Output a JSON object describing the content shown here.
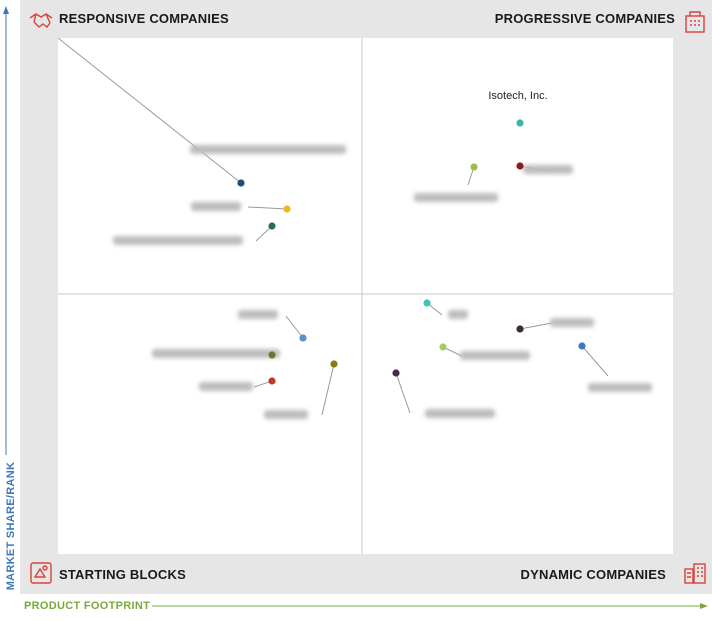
{
  "quadrants": {
    "top_left": "RESPONSIVE COMPANIES",
    "top_right": "PROGRESSIVE COMPANIES",
    "bottom_left": "STARTING BLOCKS",
    "bottom_right": "DYNAMIC COMPANIES"
  },
  "axes": {
    "y_label": "MARKET SHARE/RANK",
    "x_label": "PRODUCT FOOTPRINT"
  },
  "companies": [
    {
      "name": "Isotech, Inc.",
      "color": "#3bb4a4",
      "blurred": false
    },
    {
      "name": "",
      "color": "#8a1c1c",
      "blurred": true
    },
    {
      "name": "",
      "color": "#9dbf4a",
      "blurred": true
    },
    {
      "name": "",
      "color": "#1f4e79",
      "blurred": true
    },
    {
      "name": "",
      "color": "#f2b51d",
      "blurred": true
    },
    {
      "name": "",
      "color": "#2a6b5a",
      "blurred": true
    },
    {
      "name": "",
      "color": "#5b8fd0",
      "blurred": true
    },
    {
      "name": "",
      "color": "#6a7a2a",
      "blurred": true
    },
    {
      "name": "",
      "color": "#c0392b",
      "blurred": true
    },
    {
      "name": "",
      "color": "#8b7a10",
      "blurred": true
    },
    {
      "name": "",
      "color": "#45c1b5",
      "blurred": true
    },
    {
      "name": "",
      "color": "#3a2a3a",
      "blurred": true
    },
    {
      "name": "",
      "color": "#a8c96a",
      "blurred": true
    },
    {
      "name": "",
      "color": "#3a7ac0",
      "blurred": true
    },
    {
      "name": "",
      "color": "#4a2a4a",
      "blurred": true
    }
  ]
}
